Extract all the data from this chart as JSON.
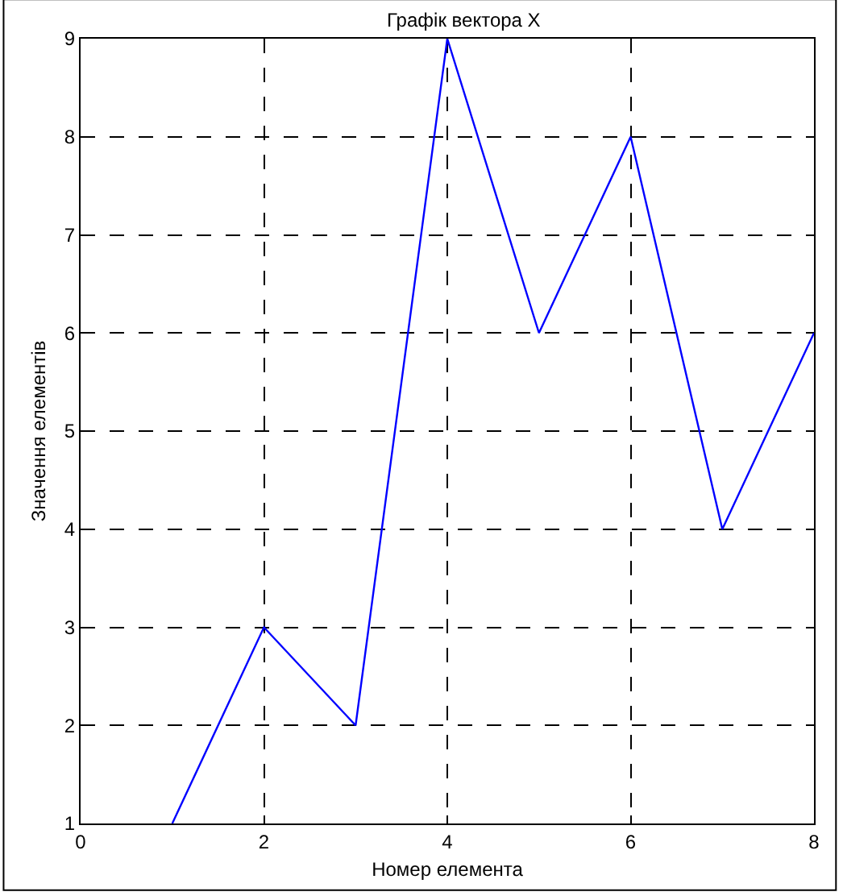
{
  "chart_data": {
    "type": "line",
    "title": "Графік вектора X",
    "xlabel": "Номер елемента",
    "ylabel": "Значення елементів",
    "x": [
      1,
      2,
      3,
      4,
      5,
      6,
      7,
      8
    ],
    "series": [
      {
        "color": "#0000ff",
        "values": [
          1,
          3,
          2,
          9,
          6,
          8,
          4,
          6
        ]
      }
    ],
    "xlim": [
      0,
      8
    ],
    "xticks": [
      0,
      2,
      4,
      6,
      8
    ],
    "ylim": [
      1,
      9
    ],
    "yticks": [
      1,
      2,
      3,
      4,
      5,
      6,
      7,
      8,
      9
    ],
    "grid": true,
    "marker": "none",
    "line_style": "solid"
  }
}
